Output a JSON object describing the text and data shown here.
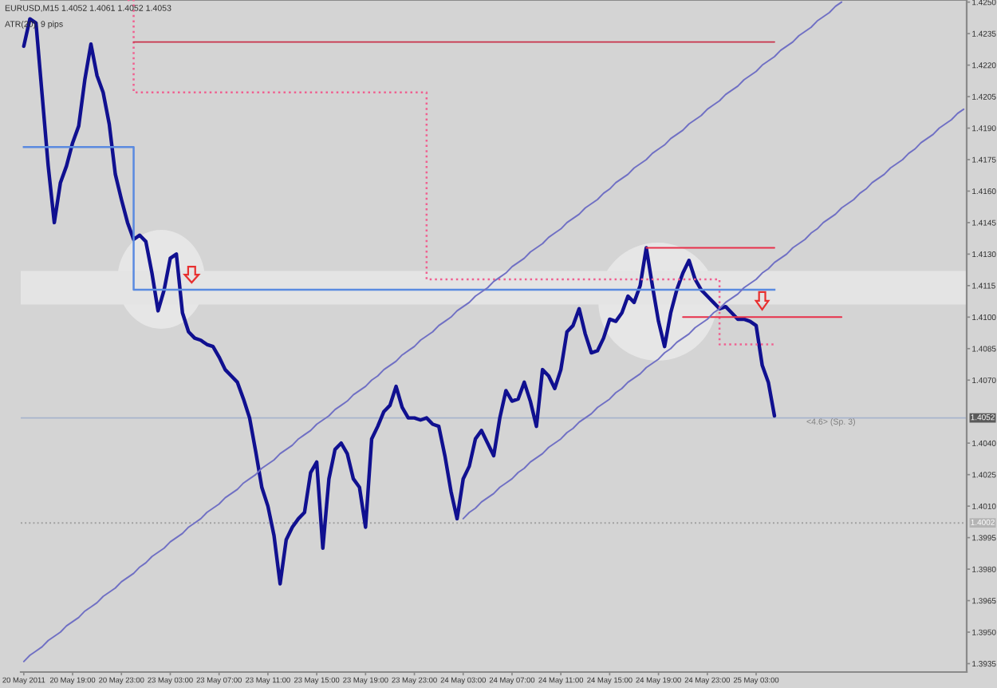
{
  "chart_data": {
    "type": "line",
    "title": "EURUSD,M15 1.4052 1.4061 1.4052 1.4053",
    "subtitle": "ATR(20): 9 pips",
    "annotations": [
      "<4.6> (Sp. 3)"
    ],
    "categories": [
      "20 May 2011",
      null,
      null,
      null,
      null,
      null,
      null,
      null,
      "20 May 19:00",
      null,
      null,
      null,
      null,
      null,
      null,
      null,
      "20 May 23:00",
      null,
      null,
      null,
      null,
      null,
      null,
      null,
      "23 May 03:00",
      null,
      null,
      null,
      null,
      null,
      null,
      null,
      "23 May 07:00",
      null,
      null,
      null,
      null,
      null,
      null,
      null,
      "23 May 11:00",
      null,
      null,
      null,
      null,
      null,
      null,
      null,
      "23 May 15:00",
      null,
      null,
      null,
      null,
      null,
      null,
      null,
      "23 May 19:00",
      null,
      null,
      null,
      null,
      null,
      null,
      null,
      "23 May 23:00",
      null,
      null,
      null,
      null,
      null,
      null,
      null,
      "24 May 03:00",
      null,
      null,
      null,
      null,
      null,
      null,
      null,
      "24 May 07:00",
      null,
      null,
      null,
      null,
      null,
      null,
      null,
      "24 May 11:00",
      null,
      null,
      null,
      null,
      null,
      null,
      null,
      "24 May 15:00",
      null,
      null,
      null,
      null,
      null,
      null,
      null,
      "24 May 19:00",
      null,
      null,
      null,
      null,
      null,
      null,
      null,
      "24 May 23:00",
      null,
      null,
      null,
      null,
      null,
      null,
      null,
      "25 May 03:00",
      null,
      null,
      null,
      null,
      null,
      null,
      null,
      null,
      null,
      null,
      null,
      null,
      null,
      null,
      null,
      null,
      null,
      null,
      null,
      null,
      null,
      null,
      null,
      null,
      null,
      null,
      null,
      null,
      null,
      null,
      null,
      null,
      null,
      null
    ],
    "ylim": [
      1.3931,
      1.4251
    ],
    "yticks": [
      {
        "value": 1.425,
        "label": "1.4250"
      },
      1.4235,
      {
        "value": 1.422,
        "label": "1.4220"
      },
      1.4205,
      {
        "value": 1.419,
        "label": "1.4190"
      },
      1.4175,
      {
        "value": 1.416,
        "label": "1.4160"
      },
      1.4145,
      {
        "value": 1.413,
        "label": "1.4130"
      },
      1.4115,
      {
        "value": 1.41,
        "label": "1.4100"
      },
      1.4085,
      {
        "value": 1.407,
        "label": "1.4070"
      },
      {
        "value": 1.404,
        "label": "1.4040"
      },
      1.4025,
      {
        "value": 1.401,
        "label": "1.4010"
      },
      1.3995,
      {
        "value": 1.398,
        "label": "1.3980"
      },
      1.3965,
      {
        "value": 1.395,
        "label": "1.3950"
      },
      1.3935
    ],
    "ref_lines": [
      {
        "axis": "y",
        "value": 1.4052,
        "label": "1.4052",
        "color": "#a8b4cc"
      },
      {
        "axis": "y",
        "value": 1.4002,
        "label": "1.4002",
        "color": "#a0a0a0",
        "line_style": "dotted"
      }
    ],
    "bands": [
      {
        "axis": "y",
        "from": 1.4106,
        "to": 1.4122,
        "color": "#e4e4e4"
      }
    ],
    "series": [
      {
        "color": "#101090",
        "values": [
          1.4229,
          1.4242,
          1.424,
          1.4206,
          1.4172,
          1.4145,
          1.4164,
          1.4172,
          1.4183,
          1.4191,
          1.4213,
          1.423,
          1.4215,
          1.4207,
          1.4192,
          1.4168,
          1.4156,
          1.4145,
          1.4137,
          1.4139,
          1.4136,
          1.4121,
          1.4103,
          1.4113,
          1.4128,
          1.413,
          1.4102,
          1.4093,
          1.409,
          1.4089,
          1.4087,
          1.4086,
          1.4081,
          1.4075,
          1.4072,
          1.4069,
          1.4061,
          1.4052,
          1.4036,
          1.4019,
          1.401,
          1.3996,
          1.3973,
          1.3994,
          1.4,
          1.4004,
          1.4007,
          1.4026,
          1.4031,
          1.399,
          1.4023,
          1.4037,
          1.404,
          1.4035,
          1.4023,
          1.4019,
          1.4,
          1.4042,
          1.4048,
          1.4055,
          1.4058,
          1.4067,
          1.4057,
          1.4052,
          1.4052,
          1.4051,
          1.4052,
          1.4049,
          1.4048,
          1.4034,
          1.4017,
          1.4004,
          1.4023,
          1.4029,
          1.4042,
          1.4046,
          1.404,
          1.4034,
          1.4052,
          1.4065,
          1.406,
          1.4061,
          1.4069,
          1.406,
          1.4048,
          1.4075,
          1.4072,
          1.4066,
          1.4075,
          1.4093,
          1.4096,
          1.4104,
          1.4092,
          1.4083,
          1.4084,
          1.409,
          1.4099,
          1.4098,
          1.4102,
          1.411,
          1.4107,
          1.4115,
          1.4133,
          1.4115,
          1.4098,
          1.4086,
          1.4102,
          1.4113,
          1.4121,
          1.4127,
          1.4118,
          1.4113,
          1.411,
          1.4107,
          1.4104,
          1.4105,
          1.4102,
          1.4099,
          1.4099,
          1.4098,
          1.4096,
          1.4077,
          1.4069,
          1.4053,
          null,
          null,
          null,
          null,
          null,
          null,
          null,
          null,
          null,
          null,
          null,
          null,
          null,
          null,
          null,
          null,
          null,
          null,
          null,
          null,
          null,
          null,
          null,
          null,
          null,
          null,
          null,
          null,
          null,
          null,
          null
        ]
      },
      {
        "type": "step",
        "color": "#f06090",
        "line_style": "dotted",
        "values": [
          null,
          null,
          null,
          null,
          null,
          null,
          null,
          null,
          null,
          null,
          null,
          null,
          null,
          null,
          null,
          null,
          null,
          1.4251,
          1.4207,
          1.4207,
          1.4207,
          1.4207,
          1.4207,
          1.4207,
          1.4207,
          1.4207,
          1.4207,
          1.4207,
          1.4207,
          1.4207,
          1.4207,
          1.4207,
          1.4207,
          1.4207,
          1.4207,
          1.4207,
          1.4207,
          1.4207,
          1.4207,
          1.4207,
          1.4207,
          1.4207,
          1.4207,
          1.4207,
          1.4207,
          1.4207,
          1.4207,
          1.4207,
          1.4207,
          1.4207,
          1.4207,
          1.4207,
          1.4207,
          1.4207,
          1.4207,
          1.4207,
          1.4207,
          1.4207,
          1.4207,
          1.4207,
          1.4207,
          1.4207,
          1.4207,
          1.4207,
          1.4207,
          1.4207,
          1.4118,
          1.4118,
          1.4118,
          1.4118,
          1.4118,
          1.4118,
          1.4118,
          1.4118,
          1.4118,
          1.4118,
          1.4118,
          1.4118,
          1.4118,
          1.4118,
          1.4118,
          1.4118,
          1.4118,
          1.4118,
          1.4118,
          1.4118,
          1.4118,
          1.4118,
          1.4118,
          1.4118,
          1.4118,
          1.4118,
          1.4118,
          1.4118,
          1.4118,
          1.4118,
          1.4118,
          1.4118,
          1.4118,
          1.4118,
          1.4118,
          1.4118,
          1.4118,
          1.4118,
          1.4118,
          1.4118,
          1.4118,
          1.4118,
          1.4118,
          1.4118,
          1.4118,
          1.4118,
          1.4118,
          1.4118,
          1.4087,
          1.4087,
          1.4087,
          1.4087,
          1.4087,
          1.4087,
          1.4087,
          1.4087,
          1.4087,
          1.4087,
          null,
          null,
          null,
          null,
          null,
          null,
          null,
          null,
          null,
          null,
          null,
          null,
          null,
          null,
          null,
          null,
          null,
          null,
          null,
          null,
          null,
          null,
          null,
          null,
          null,
          null,
          null,
          null,
          null,
          null,
          null
        ]
      },
      {
        "type": "step",
        "color": "#5a8ae0",
        "values": [
          1.4181,
          1.4181,
          1.4181,
          1.4181,
          1.4181,
          1.4181,
          1.4181,
          1.4181,
          1.4181,
          1.4181,
          1.4181,
          1.4181,
          1.4181,
          1.4181,
          1.4181,
          1.4181,
          1.4181,
          1.4181,
          1.4113,
          1.4113,
          1.4113,
          1.4113,
          1.4113,
          1.4113,
          1.4113,
          1.4113,
          1.4113,
          1.4113,
          1.4113,
          1.4113,
          1.4113,
          1.4113,
          1.4113,
          1.4113,
          1.4113,
          1.4113,
          1.4113,
          1.4113,
          1.4113,
          1.4113,
          1.4113,
          1.4113,
          1.4113,
          1.4113,
          1.4113,
          1.4113,
          1.4113,
          1.4113,
          1.4113,
          1.4113,
          1.4113,
          1.4113,
          1.4113,
          1.4113,
          1.4113,
          1.4113,
          1.4113,
          1.4113,
          1.4113,
          1.4113,
          1.4113,
          1.4113,
          1.4113,
          1.4113,
          1.4113,
          1.4113,
          1.4113,
          1.4113,
          1.4113,
          1.4113,
          1.4113,
          1.4113,
          1.4113,
          1.4113,
          1.4113,
          1.4113,
          1.4113,
          1.4113,
          1.4113,
          1.4113,
          1.4113,
          1.4113,
          1.4113,
          1.4113,
          1.4113,
          1.4113,
          1.4113,
          1.4113,
          1.4113,
          1.4113,
          1.4113,
          1.4113,
          1.4113,
          1.4113,
          1.4113,
          1.4113,
          1.4113,
          1.4113,
          1.4113,
          1.4113,
          1.4113,
          1.4113,
          1.4113,
          1.4113,
          1.4113,
          1.4113,
          1.4113,
          1.4113,
          1.4113,
          1.4113,
          1.4113,
          1.4113,
          1.4113,
          1.4113,
          1.4113,
          1.4113,
          1.4113,
          1.4113,
          1.4113,
          1.4113,
          1.4113,
          1.4113,
          1.4113,
          1.4113,
          null,
          null,
          null,
          null,
          null,
          null,
          null,
          null,
          null,
          null,
          null,
          null,
          null,
          null,
          null,
          null,
          null,
          null,
          null,
          null,
          null,
          null,
          null,
          null,
          null,
          null,
          null,
          null,
          null,
          null,
          null
        ]
      },
      {
        "type": "line",
        "color": "#c8324a",
        "values": [
          null,
          null,
          null,
          null,
          null,
          null,
          null,
          null,
          null,
          null,
          null,
          null,
          null,
          null,
          null,
          null,
          null,
          null,
          1.4231,
          1.4231,
          1.4231,
          1.4231,
          1.4231,
          1.4231,
          1.4231,
          1.4231,
          1.4231,
          1.4231,
          1.4231,
          1.4231,
          1.4231,
          1.4231,
          1.4231,
          1.4231,
          1.4231,
          1.4231,
          1.4231,
          1.4231,
          1.4231,
          1.4231,
          1.4231,
          1.4231,
          1.4231,
          1.4231,
          1.4231,
          1.4231,
          1.4231,
          1.4231,
          1.4231,
          1.4231,
          1.4231,
          1.4231,
          1.4231,
          1.4231,
          1.4231,
          1.4231,
          1.4231,
          1.4231,
          1.4231,
          1.4231,
          1.4231,
          1.4231,
          1.4231,
          1.4231,
          1.4231,
          1.4231,
          1.4231,
          1.4231,
          1.4231,
          1.4231,
          1.4231,
          1.4231,
          1.4231,
          1.4231,
          1.4231,
          1.4231,
          1.4231,
          1.4231,
          1.4231,
          1.4231,
          1.4231,
          1.4231,
          1.4231,
          1.4231,
          1.4231,
          1.4231,
          1.4231,
          1.4231,
          1.4231,
          1.4231,
          1.4231,
          1.4231,
          1.4231,
          1.4231,
          1.4231,
          1.4231,
          1.4231,
          1.4231,
          1.4231,
          1.4231,
          1.4231,
          1.4231,
          1.4231,
          1.4231,
          1.4231,
          1.4231,
          1.4231,
          1.4231,
          1.4231,
          1.4231,
          1.4231,
          1.4231,
          1.4231,
          1.4231,
          1.4231,
          1.4231,
          1.4231,
          1.4231,
          1.4231,
          1.4231,
          1.4231,
          1.4231,
          1.4231,
          1.4231,
          null,
          null,
          null,
          null,
          null,
          null,
          null,
          null,
          null,
          null,
          null,
          null,
          null,
          null,
          null,
          null,
          null,
          null,
          null,
          null,
          null,
          null,
          null,
          null,
          null,
          null,
          null,
          null,
          null,
          null,
          null
        ]
      },
      {
        "type": "line",
        "color": "#e8304a",
        "values": [
          null,
          null,
          null,
          null,
          null,
          null,
          null,
          null,
          null,
          null,
          null,
          null,
          null,
          null,
          null,
          null,
          null,
          null,
          null,
          null,
          null,
          null,
          null,
          null,
          null,
          null,
          null,
          null,
          null,
          null,
          null,
          null,
          null,
          null,
          null,
          null,
          null,
          null,
          null,
          null,
          null,
          null,
          null,
          null,
          null,
          null,
          null,
          null,
          null,
          null,
          null,
          null,
          null,
          null,
          null,
          null,
          null,
          null,
          null,
          null,
          null,
          null,
          null,
          null,
          null,
          null,
          null,
          null,
          null,
          null,
          null,
          null,
          null,
          null,
          null,
          null,
          null,
          null,
          null,
          null,
          null,
          null,
          null,
          null,
          null,
          null,
          null,
          null,
          null,
          null,
          null,
          null,
          null,
          null,
          null,
          null,
          null,
          null,
          null,
          null,
          null,
          null,
          1.4133,
          1.4133,
          1.4133,
          1.4133,
          1.4133,
          1.4133,
          1.4133,
          1.4133,
          1.4133,
          1.4133,
          1.4133,
          1.4133,
          1.4133,
          1.4133,
          1.4133,
          1.4133,
          1.4133,
          1.4133,
          1.4133,
          1.4133,
          1.4133,
          1.4133,
          null,
          null,
          null,
          null,
          null,
          null,
          null,
          null,
          null,
          null,
          null,
          null,
          null,
          null,
          null,
          null,
          null,
          null,
          null,
          null,
          null,
          null,
          null,
          null,
          null,
          null,
          null,
          null,
          null,
          null,
          null
        ]
      },
      {
        "type": "line",
        "color": "#e8304a",
        "values": [
          null,
          null,
          null,
          null,
          null,
          null,
          null,
          null,
          null,
          null,
          null,
          null,
          null,
          null,
          null,
          null,
          null,
          null,
          null,
          null,
          null,
          null,
          null,
          null,
          null,
          null,
          null,
          null,
          null,
          null,
          null,
          null,
          null,
          null,
          null,
          null,
          null,
          null,
          null,
          null,
          null,
          null,
          null,
          null,
          null,
          null,
          null,
          null,
          null,
          null,
          null,
          null,
          null,
          null,
          null,
          null,
          null,
          null,
          null,
          null,
          null,
          null,
          null,
          null,
          null,
          null,
          null,
          null,
          null,
          null,
          null,
          null,
          null,
          null,
          null,
          null,
          null,
          null,
          null,
          null,
          null,
          null,
          null,
          null,
          null,
          null,
          null,
          null,
          null,
          null,
          null,
          null,
          null,
          null,
          null,
          null,
          null,
          null,
          null,
          null,
          null,
          null,
          null,
          null,
          null,
          null,
          null,
          null,
          1.41,
          1.41,
          1.41,
          1.41,
          1.41,
          1.41,
          1.41,
          1.41,
          1.41,
          1.41,
          1.41,
          1.41,
          1.41,
          1.41,
          1.41,
          1.41,
          1.41,
          1.41,
          1.41,
          1.41,
          1.41,
          1.41,
          1.41,
          1.41,
          1.41,
          1.41,
          1.41,
          null,
          null,
          null,
          null,
          null,
          null,
          null,
          null,
          null,
          null,
          null,
          null,
          null,
          null,
          null,
          null,
          null,
          null,
          null,
          null
        ]
      },
      {
        "type": "line",
        "color": "#7070c4",
        "values": [
          1.3936,
          1.3939,
          1.3941,
          1.3943,
          1.3946,
          1.3948,
          1.395,
          1.3953,
          1.3955,
          1.3957,
          1.396,
          1.3962,
          1.3964,
          1.3967,
          1.3969,
          1.3971,
          1.3974,
          1.3976,
          1.3978,
          1.3981,
          1.3983,
          1.3986,
          1.3988,
          1.399,
          1.3993,
          1.3995,
          1.3997,
          1.4,
          1.4002,
          1.4004,
          1.4007,
          1.4009,
          1.4011,
          1.4014,
          1.4016,
          1.4018,
          1.4021,
          1.4023,
          1.4025,
          1.4028,
          1.403,
          1.4032,
          1.4035,
          1.4037,
          1.4039,
          1.4042,
          1.4044,
          1.4046,
          1.4049,
          1.4051,
          1.4053,
          1.4056,
          1.4058,
          1.406,
          1.4063,
          1.4065,
          1.4067,
          1.407,
          1.4072,
          1.4075,
          1.4077,
          1.4079,
          1.4082,
          1.4084,
          1.4086,
          1.4089,
          1.4091,
          1.4093,
          1.4096,
          1.4098,
          1.41,
          1.4103,
          1.4105,
          1.4107,
          1.411,
          1.4112,
          1.4114,
          1.4117,
          1.4119,
          1.4121,
          1.4124,
          1.4126,
          1.4128,
          1.4131,
          1.4133,
          1.4135,
          1.4138,
          1.414,
          1.4142,
          1.4145,
          1.4147,
          1.4149,
          1.4152,
          1.4154,
          1.4156,
          1.4159,
          1.4161,
          1.4164,
          1.4166,
          1.4168,
          1.4171,
          1.4173,
          1.4175,
          1.4178,
          1.418,
          1.4182,
          1.4185,
          1.4187,
          1.4189,
          1.4192,
          1.4194,
          1.4196,
          1.4199,
          1.4201,
          1.4203,
          1.4206,
          1.4208,
          1.421,
          1.4213,
          1.4215,
          1.4217,
          1.422,
          1.4222,
          1.4224,
          1.4227,
          1.4229,
          1.4231,
          1.4234,
          1.4236,
          1.4238,
          1.4241,
          1.4243,
          1.4245,
          1.4248,
          1.425,
          null,
          null,
          null,
          null,
          null,
          null,
          null,
          null,
          null,
          null,
          null,
          null,
          null,
          null,
          null,
          null,
          null,
          null,
          null,
          null
        ]
      },
      {
        "type": "line",
        "color": "#7070c4",
        "values": [
          null,
          null,
          null,
          null,
          null,
          null,
          null,
          null,
          null,
          null,
          null,
          null,
          null,
          null,
          null,
          null,
          null,
          null,
          null,
          null,
          null,
          null,
          null,
          null,
          null,
          null,
          null,
          null,
          null,
          null,
          null,
          null,
          null,
          null,
          null,
          null,
          null,
          null,
          null,
          null,
          null,
          null,
          null,
          null,
          null,
          null,
          null,
          null,
          null,
          null,
          null,
          null,
          null,
          null,
          null,
          null,
          null,
          null,
          null,
          null,
          null,
          null,
          null,
          null,
          null,
          null,
          null,
          null,
          null,
          null,
          null,
          null,
          1.4004,
          1.4007,
          1.4009,
          1.4012,
          1.4014,
          1.4016,
          1.4019,
          1.4021,
          1.4023,
          1.4026,
          1.4028,
          1.4031,
          1.4033,
          1.4035,
          1.4038,
          1.404,
          1.4042,
          1.4045,
          1.4047,
          1.405,
          1.4052,
          1.4054,
          1.4057,
          1.4059,
          1.4061,
          1.4064,
          1.4066,
          1.4069,
          1.4071,
          1.4073,
          1.4076,
          1.4078,
          1.408,
          1.4083,
          1.4085,
          1.4088,
          1.409,
          1.4092,
          1.4095,
          1.4097,
          1.4099,
          1.4102,
          1.4104,
          1.4107,
          1.4109,
          1.4111,
          1.4114,
          1.4116,
          1.4118,
          1.4121,
          1.4123,
          1.4126,
          1.4128,
          1.413,
          1.4133,
          1.4135,
          1.4137,
          1.414,
          1.4142,
          1.4145,
          1.4147,
          1.4149,
          1.4152,
          1.4154,
          1.4156,
          1.4159,
          1.4161,
          1.4164,
          1.4166,
          1.4168,
          1.4171,
          1.4173,
          1.4175,
          1.4178,
          1.418,
          1.4183,
          1.4185,
          1.4187,
          1.419,
          1.4192,
          1.4194,
          1.4197,
          1.4199
        ]
      }
    ]
  }
}
